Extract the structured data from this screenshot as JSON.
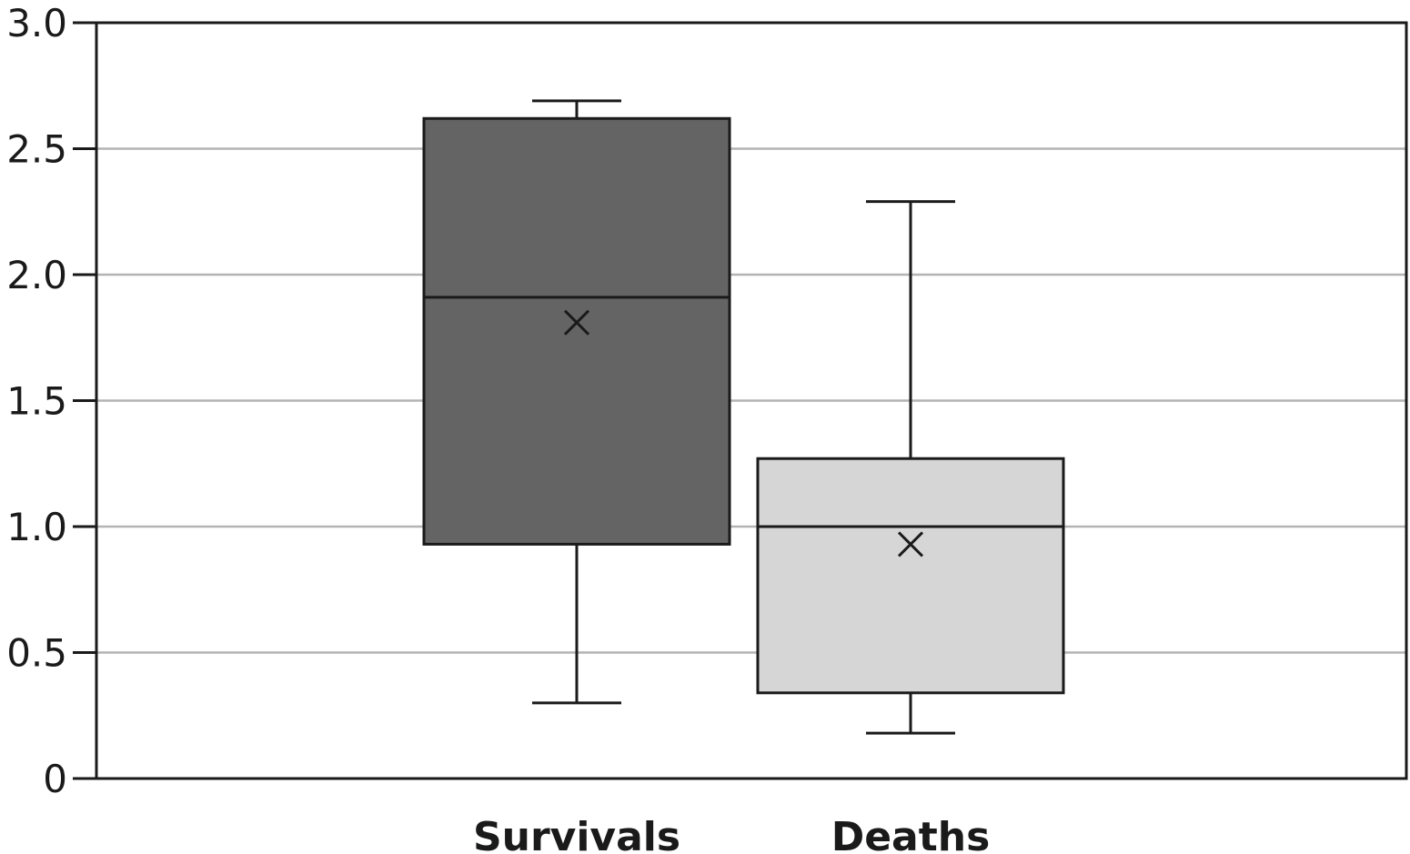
{
  "chart_data": {
    "type": "box",
    "title": "",
    "xlabel": "",
    "ylabel": "",
    "ylim": [
      0,
      3.0
    ],
    "yticks": [
      0,
      0.5,
      1.0,
      1.5,
      2.0,
      2.5,
      3.0
    ],
    "ytick_labels": [
      "0",
      "0.5",
      "1.0",
      "1.5",
      "2.0",
      "2.5",
      "3.0"
    ],
    "grid": true,
    "legend": "none",
    "categories": [
      "Survivals",
      "Deaths"
    ],
    "boxes": [
      {
        "label": "Survivals",
        "min": 0.3,
        "q1": 0.93,
        "median": 1.91,
        "q3": 2.62,
        "max": 2.69,
        "mean": 1.81,
        "color": "#646464"
      },
      {
        "label": "Deaths",
        "min": 0.18,
        "q1": 0.34,
        "median": 1.0,
        "q3": 1.27,
        "max": 2.29,
        "mean": 0.93,
        "color": "#d6d6d6"
      }
    ],
    "colors": {
      "grid": "#b3b3b3",
      "axis": "#1a1a1a"
    }
  }
}
